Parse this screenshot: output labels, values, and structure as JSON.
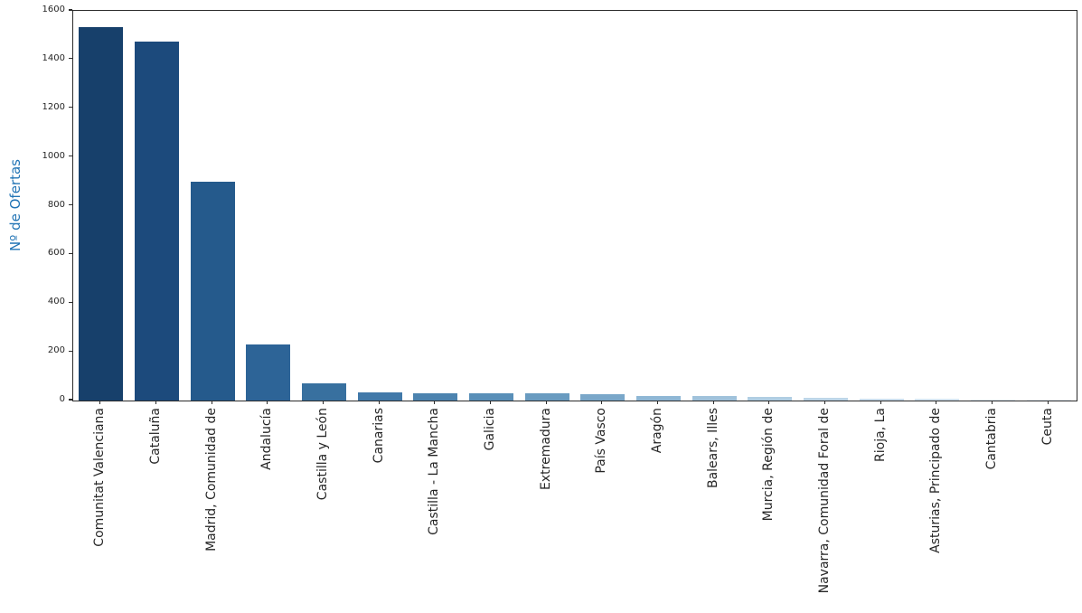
{
  "chart_data": {
    "type": "bar",
    "title": "",
    "xlabel": "",
    "ylabel": "Nº de Ofertas",
    "ylabel_color": "#2274b5",
    "tick_label_color": "#262626",
    "spine_color": "#2b2b2b",
    "grid": false,
    "legend": null,
    "ylim": [
      0,
      1600
    ],
    "yticks": [
      0,
      200,
      400,
      600,
      800,
      1000,
      1200,
      1400,
      1600
    ],
    "categories": [
      "Comunitat Valenciana",
      "Cataluña",
      "Madrid, Comunidad de",
      "Andalucía",
      "Castilla y León",
      "Canarias",
      "Castilla - La Mancha",
      "Galicia",
      "Extremadura",
      "País Vasco",
      "Aragón",
      "Balears, Illes",
      "Murcia, Región de",
      "Navarra, Comunidad Foral de",
      "Rioja, La",
      "Asturias, Principado de",
      "Cantabria",
      "Ceuta"
    ],
    "values": [
      1535,
      1474,
      898,
      230,
      72,
      34,
      31,
      29,
      28,
      27,
      19,
      18,
      16,
      13,
      9,
      6,
      5,
      2
    ],
    "bar_colors": [
      "#17406b",
      "#1c4a7c",
      "#255a8c",
      "#2d6497",
      "#38709f",
      "#4179a9",
      "#4c83af",
      "#598fb8",
      "#699bc0",
      "#7aa7c9",
      "#8fb7d5",
      "#a0c2db",
      "#b0cee3",
      "#bed6e8",
      "#cbdeed",
      "#d6e5f1",
      "#dfeaf4",
      "#e7f0f8"
    ]
  }
}
